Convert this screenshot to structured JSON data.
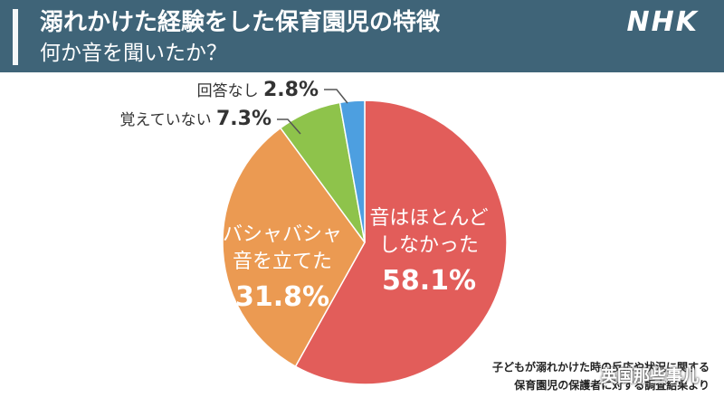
{
  "header": {
    "title": "溺れかけた経験をした保育園児の特徴",
    "subtitle": "何か音を聞いたか？",
    "logo": "NHK"
  },
  "chart_data": {
    "type": "pie",
    "title": "溺れかけた経験をした保育園児の特徴",
    "subtitle": "何か音を聞いたか？",
    "slices": [
      {
        "label": [
          "音はほとんど",
          "しなかった"
        ],
        "value": 58.1,
        "value_label": "58.1%",
        "color": "#e25d5a",
        "label_position": "inside"
      },
      {
        "label": [
          "バシャバシャ",
          "音を立てた"
        ],
        "value": 31.8,
        "value_label": "31.8%",
        "color": "#eb9a52",
        "label_position": "inside"
      },
      {
        "label": [
          "覚えていない"
        ],
        "value": 7.3,
        "value_label": "7.3%",
        "color": "#8ec34b",
        "label_position": "outside"
      },
      {
        "label": [
          "回答なし"
        ],
        "value": 2.8,
        "value_label": "2.8%",
        "color": "#4d9fe0",
        "label_position": "outside"
      }
    ],
    "start_angle_deg": 0,
    "direction": "clockwise",
    "legend": "none"
  },
  "source": {
    "lines": [
      "子どもが溺れかけた時の反応や状況に関する",
      "保育園児の保護者に対する調査結果より"
    ]
  },
  "watermark": "英国那些事儿"
}
